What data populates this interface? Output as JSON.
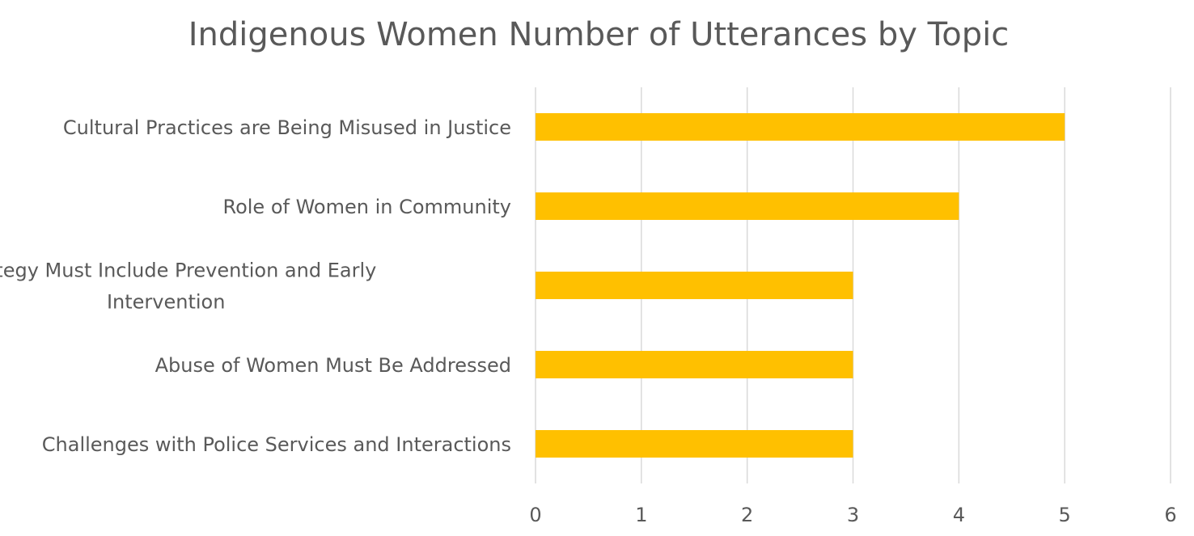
{
  "chart_data": {
    "type": "bar",
    "orientation": "horizontal",
    "title": "Indigenous Women Number of Utterances by Topic",
    "categories": [
      "Cultural Practices are Being Misused in Justice",
      "Role of Women in Community",
      "Strategy Must Include Prevention and Early Intervention",
      "Abuse of Women Must Be Addressed",
      "Challenges with Police Services and Interactions"
    ],
    "category_lines": [
      [
        "Cultural Practices are Being Misused in Justice"
      ],
      [
        "Role of Women in Community"
      ],
      [
        "Strategy Must Include Prevention and Early",
        "Intervention"
      ],
      [
        "Abuse of Women Must Be Addressed"
      ],
      [
        "Challenges with Police Services and Interactions"
      ]
    ],
    "values": [
      5,
      4,
      3,
      3,
      3
    ],
    "xlim": [
      0,
      6
    ],
    "x_ticks": [
      "0",
      "1",
      "2",
      "3",
      "4",
      "5",
      "6"
    ],
    "xlabel": "",
    "ylabel": "",
    "grid": true,
    "legend": "none",
    "bar_color": "#ffc000",
    "text_color": "#595959",
    "grid_color": "#d9d9d9"
  }
}
